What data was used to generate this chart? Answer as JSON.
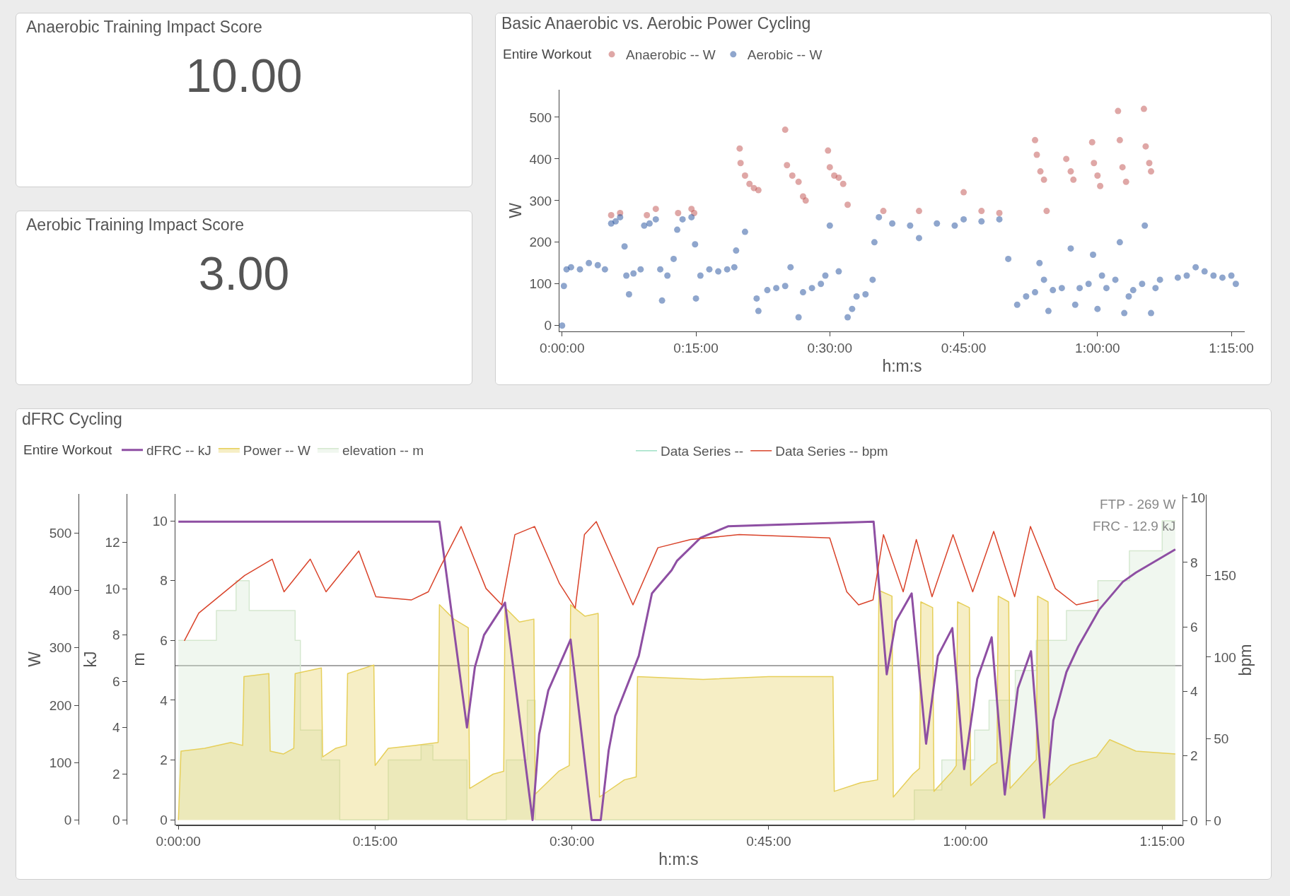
{
  "chart_data": [
    {
      "type": "other",
      "title": "Anaerobic Training Impact Score",
      "annotations": [
        "10.00"
      ]
    },
    {
      "type": "other",
      "title": "Aerobic Training Impact Score",
      "annotations": [
        "3.00"
      ]
    },
    {
      "type": "scatter",
      "title": "Basic Anaerobic vs. Aerobic Power Cycling",
      "xlabel": "h:m:s",
      "ylabel": "W",
      "legend_title": "Entire Workout",
      "legend": "top left",
      "marker": "circle",
      "xlim": [
        -0.3,
        76.5
      ],
      "xticks": [
        {
          "value": 0,
          "label": "0:00:00"
        },
        {
          "value": 15,
          "label": "0:15:00"
        },
        {
          "value": 30,
          "label": "0:30:00"
        },
        {
          "value": 45,
          "label": "0:45:00"
        },
        {
          "value": 60,
          "label": "1:00:00"
        },
        {
          "value": 75,
          "label": "1:15:00"
        }
      ],
      "ylim": [
        -14,
        566
      ],
      "yticks": [
        0,
        100,
        200,
        300,
        400,
        500
      ],
      "series": [
        {
          "name": "Anaerobic -- W",
          "color": "#c0504d",
          "x": [
            5.5,
            6.5,
            9.5,
            10.5,
            13,
            14.5,
            14.8,
            19.9,
            20,
            20.5,
            21,
            21.5,
            22,
            25,
            25.2,
            25.8,
            26.5,
            27,
            27.3,
            29.8,
            30,
            30.5,
            31,
            31.5,
            32,
            36,
            40,
            45,
            47,
            49,
            53,
            53.2,
            53.6,
            54,
            54.3,
            56.5,
            57,
            57.3,
            59.4,
            59.6,
            60,
            60.3,
            62.3,
            62.5,
            62.8,
            63.2,
            65.2,
            65.4,
            65.8,
            66
          ],
          "values": [
            265,
            270,
            265,
            280,
            270,
            280,
            270,
            425,
            390,
            360,
            340,
            330,
            325,
            470,
            385,
            360,
            345,
            310,
            300,
            420,
            380,
            360,
            355,
            340,
            290,
            275,
            275,
            320,
            275,
            270,
            445,
            410,
            370,
            350,
            275,
            400,
            370,
            350,
            440,
            390,
            360,
            335,
            515,
            445,
            380,
            345,
            520,
            430,
            390,
            370
          ]
        },
        {
          "name": "Aerobic -- W",
          "color": "#1f4e9b",
          "x": [
            0,
            0.2,
            0.5,
            1,
            2,
            3,
            4,
            4.8,
            5.5,
            6,
            6.5,
            7,
            7.2,
            7.5,
            8,
            8.8,
            9.2,
            9.8,
            10.5,
            11,
            11.2,
            11.8,
            12.5,
            12.9,
            13.5,
            14.5,
            14.9,
            15,
            15.5,
            16.5,
            17.5,
            18.5,
            19.3,
            19.5,
            20.5,
            21.8,
            22,
            23,
            24,
            25,
            25.6,
            26.5,
            27,
            28,
            29,
            29.5,
            30,
            31,
            32,
            32.5,
            33,
            34,
            34.8,
            35,
            35.5,
            37,
            39,
            40,
            42,
            44,
            45,
            47,
            49,
            50,
            51,
            52,
            53,
            53.5,
            54,
            54.5,
            55,
            56,
            57,
            57.5,
            58,
            59,
            59.5,
            60,
            60.5,
            61,
            62,
            62.5,
            63,
            63.5,
            64,
            65,
            65.3,
            66,
            66.5,
            67,
            69,
            70,
            71,
            72,
            73,
            74,
            75,
            75.5
          ],
          "values": [
            0,
            95,
            135,
            140,
            135,
            150,
            145,
            135,
            245,
            250,
            260,
            190,
            120,
            75,
            125,
            135,
            240,
            245,
            255,
            135,
            60,
            120,
            160,
            230,
            255,
            260,
            195,
            65,
            120,
            135,
            130,
            135,
            140,
            180,
            225,
            65,
            35,
            85,
            90,
            95,
            140,
            20,
            80,
            90,
            100,
            120,
            240,
            130,
            20,
            40,
            70,
            75,
            110,
            200,
            260,
            245,
            240,
            210,
            245,
            240,
            255,
            250,
            255,
            160,
            50,
            70,
            80,
            150,
            110,
            35,
            85,
            90,
            185,
            50,
            90,
            100,
            170,
            40,
            120,
            90,
            110,
            200,
            30,
            70,
            85,
            100,
            240,
            30,
            90,
            110,
            115,
            120,
            140,
            130,
            120,
            115,
            120,
            100
          ]
        }
      ]
    },
    {
      "type": "line",
      "title": "dFRC Cycling",
      "xlabel": "h:m:s",
      "ylabel": "m",
      "y2label": "W",
      "y3label": "kJ",
      "legend_title": "Entire Workout",
      "legend": "top left",
      "annotations": [
        "FTP - 269 W",
        "FRC - 12.9 kJ"
      ],
      "xlim": [
        -0.25,
        76.5
      ],
      "xticks": [
        {
          "value": 0,
          "label": "0:00:00"
        },
        {
          "value": 15,
          "label": "0:15:00"
        },
        {
          "value": 30,
          "label": "0:30:00"
        },
        {
          "value": 45,
          "label": "0:45:00"
        },
        {
          "value": 60,
          "label": "1:00:00"
        },
        {
          "value": 75,
          "label": "1:15:00"
        }
      ],
      "ylim": [
        -0.16,
        10.9
      ],
      "yticks": [
        0,
        2,
        4,
        6,
        8,
        10
      ],
      "y2lim": [
        -8,
        568
      ],
      "y2ticks": [
        0,
        100,
        200,
        300,
        400,
        500
      ],
      "y3lim": [
        -0.2,
        14.1
      ],
      "y3ticks": [
        0,
        2,
        4,
        6,
        8,
        10,
        12
      ],
      "ref_lines": [
        {
          "axis": "y2",
          "value": 269,
          "color": "#888888"
        }
      ],
      "series": [
        {
          "name": "dFRC -- kJ",
          "color": "#8e4fa3",
          "axis": "y3",
          "type": "line",
          "x": [
            0,
            19.9,
            22,
            22.6,
            23.3,
            24.9,
            27,
            27.5,
            28.2,
            29.9,
            31.5,
            32.2,
            32.8,
            33.3,
            35.1,
            36.1,
            37.6,
            38,
            39.8,
            41.9,
            53,
            54,
            54.7,
            55.9,
            57,
            57.9,
            59,
            59.9,
            60.9,
            62,
            63,
            64,
            65,
            66,
            66.7,
            67.7,
            68.6,
            70.2,
            72,
            73,
            76
          ],
          "values": [
            12.9,
            12.9,
            4,
            6.6,
            8,
            9.4,
            0,
            3.7,
            5.6,
            7.8,
            0,
            0,
            3,
            4.5,
            7.1,
            9.8,
            10.8,
            11.2,
            12.2,
            12.7,
            12.9,
            6.3,
            8.6,
            9.8,
            3.3,
            7.1,
            8.3,
            2.2,
            6.1,
            7.9,
            1.1,
            5.7,
            7.3,
            0.1,
            4.3,
            6.4,
            7.5,
            9.1,
            10.3,
            10.7,
            11.7
          ]
        },
        {
          "name": "Power -- W",
          "color": "#e6cf5a",
          "axis": "y2",
          "type": "area",
          "x": [
            0,
            0.2,
            2,
            4,
            4.9,
            5,
            6.9,
            7,
            8,
            8.8,
            8.9,
            10.9,
            11,
            12,
            12.8,
            12.9,
            14.9,
            15,
            16,
            18,
            19.8,
            19.9,
            21,
            22.1,
            22.2,
            24,
            24.8,
            24.9,
            26,
            27.1,
            27.2,
            29,
            29.8,
            29.9,
            31,
            32,
            32.1,
            34,
            34.9,
            35,
            40,
            45,
            49.9,
            50,
            52,
            53.3,
            53.4,
            54.4,
            54.5,
            56,
            56.5,
            56.6,
            57.5,
            57.6,
            59,
            59.3,
            59.4,
            60.3,
            60.4,
            62,
            62.4,
            62.5,
            63.3,
            63.4,
            65,
            65.4,
            65.5,
            66.3,
            66.4,
            68,
            70,
            71,
            73,
            76
          ],
          "values": [
            0,
            120,
            125,
            135,
            130,
            250,
            255,
            120,
            115,
            125,
            255,
            265,
            110,
            125,
            130,
            255,
            270,
            95,
            125,
            130,
            135,
            375,
            350,
            335,
            55,
            80,
            85,
            370,
            345,
            350,
            45,
            85,
            95,
            375,
            355,
            360,
            40,
            70,
            75,
            250,
            245,
            250,
            250,
            50,
            65,
            70,
            400,
            390,
            40,
            80,
            90,
            380,
            370,
            50,
            85,
            95,
            380,
            370,
            60,
            95,
            100,
            390,
            380,
            55,
            95,
            105,
            390,
            380,
            60,
            95,
            110,
            140,
            120,
            115
          ]
        },
        {
          "name": "elevation -- m",
          "color": "#d5e8d0",
          "type": "area",
          "x": [
            0,
            2.9,
            2.9,
            4.4,
            4.4,
            5.4,
            5.4,
            8.9,
            8.9,
            9.3,
            9.3,
            10.9,
            10.9,
            12.3,
            12.3,
            16,
            16,
            18.5,
            18.5,
            19.4,
            19.4,
            22,
            22,
            25,
            25,
            26.6,
            26.6,
            27.2,
            27.2,
            56.1,
            56.1,
            58.2,
            58.2,
            60.7,
            60.7,
            61.8,
            61.8,
            63.8,
            63.8,
            65.4,
            65.4,
            67.7,
            67.7,
            70.1,
            70.1,
            72.5,
            72.5,
            75,
            75,
            76
          ],
          "values": [
            6,
            6,
            7,
            7,
            8,
            8,
            7,
            7,
            6,
            6,
            3,
            3,
            2,
            2,
            0,
            0,
            2,
            2,
            2.5,
            2.5,
            2,
            2,
            0,
            0,
            2,
            2,
            4,
            4,
            0,
            0,
            1,
            1,
            2,
            2,
            3,
            3,
            4,
            4,
            5,
            5,
            6,
            6,
            7,
            7,
            8,
            8,
            9,
            9,
            10,
            10
          ]
        }
      ]
    },
    {
      "type": "line",
      "legend": "top",
      "tick_labels": "y",
      "y2label": "bpm",
      "xlim": [
        -0.25,
        76.5
      ],
      "ylim": [
        -0.15,
        10.1
      ],
      "yticks": [
        0,
        2,
        4,
        6,
        8,
        10
      ],
      "y2lim": [
        -3,
        199.5
      ],
      "y2ticks": [
        0,
        50,
        100,
        150
      ],
      "series": [
        {
          "name": "Data Series --",
          "color": "#9ee0c5",
          "type": "line"
        },
        {
          "name": "Data Series -- bpm",
          "color": "#d9432a",
          "axis": "y2",
          "type": "line",
          "x": [
            0.4,
            1.5,
            5,
            7.1,
            8,
            10,
            11.2,
            13.7,
            15,
            17.7,
            19,
            19.9,
            21.5,
            23.4,
            24.6,
            25.6,
            27.1,
            29,
            30.2,
            30.9,
            31.8,
            34.6,
            36.5,
            39,
            42.7,
            49.6,
            50.9,
            51.8,
            52.9,
            53.7,
            55.2,
            56.2,
            57.4,
            59,
            60.5,
            62.1,
            63.7,
            64.9,
            66.8,
            68.4,
            70.1
          ],
          "values": [
            110,
            127,
            150,
            160,
            140,
            160,
            140,
            165,
            137,
            135,
            140,
            155,
            180,
            142,
            132,
            175,
            180,
            145,
            130,
            175,
            183,
            132,
            167,
            172,
            175,
            173,
            140,
            132,
            135,
            175,
            140,
            172,
            137,
            175,
            140,
            177,
            137,
            180,
            142,
            132,
            135
          ]
        }
      ]
    }
  ]
}
